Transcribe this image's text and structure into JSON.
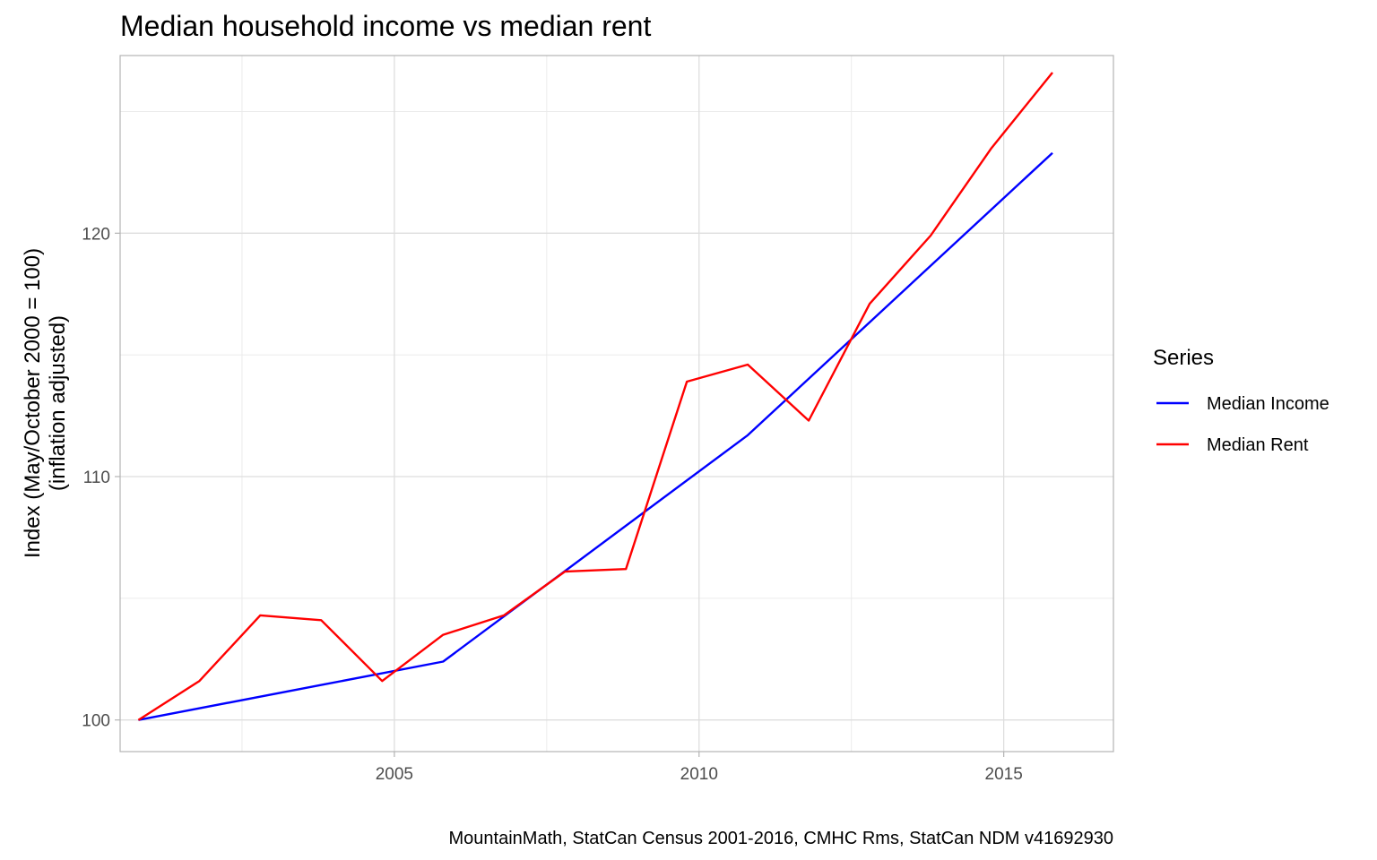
{
  "chart_data": {
    "type": "line",
    "title": "Median household income vs median rent",
    "ylabel_line1": "Index (May/October 2000 = 100)",
    "ylabel_line2": "(inflation adjusted)",
    "xlabel": "",
    "caption": "MountainMath, StatCan Census 2001-2016, CMHC Rms, StatCan NDM v41692930",
    "xlim": [
      2000.5,
      2016.8
    ],
    "ylim": [
      98.7,
      127.3
    ],
    "x_ticks": [
      2005,
      2010,
      2015
    ],
    "x_tick_labels": [
      "2005",
      "2010",
      "2015"
    ],
    "x_minor_ticks": [
      2002.5,
      2007.5,
      2012.5
    ],
    "y_ticks": [
      100,
      110,
      120
    ],
    "y_tick_labels": [
      "100",
      "110",
      "120"
    ],
    "y_minor_ticks": [
      105,
      115,
      125
    ],
    "grid": true,
    "legend": {
      "title": "Series",
      "placement": "right",
      "entries": [
        {
          "label": "Median Income",
          "color": "#0000ff"
        },
        {
          "label": "Median Rent",
          "color": "#ff0000"
        }
      ]
    },
    "series": [
      {
        "name": "Median Income",
        "color": "#0000ff",
        "x": [
          2000.8,
          2005.8,
          2010.8,
          2015.8
        ],
        "y": [
          100.0,
          102.4,
          111.7,
          123.3
        ]
      },
      {
        "name": "Median Rent",
        "color": "#ff0000",
        "x": [
          2000.8,
          2001.8,
          2002.8,
          2003.8,
          2004.8,
          2005.8,
          2006.8,
          2007.8,
          2008.8,
          2009.8,
          2010.8,
          2011.8,
          2012.8,
          2013.8,
          2014.8,
          2015.8
        ],
        "y": [
          100.0,
          101.6,
          104.3,
          104.1,
          101.6,
          103.5,
          104.3,
          106.1,
          106.2,
          113.9,
          114.6,
          112.3,
          117.1,
          119.9,
          123.5,
          126.6
        ]
      }
    ]
  }
}
